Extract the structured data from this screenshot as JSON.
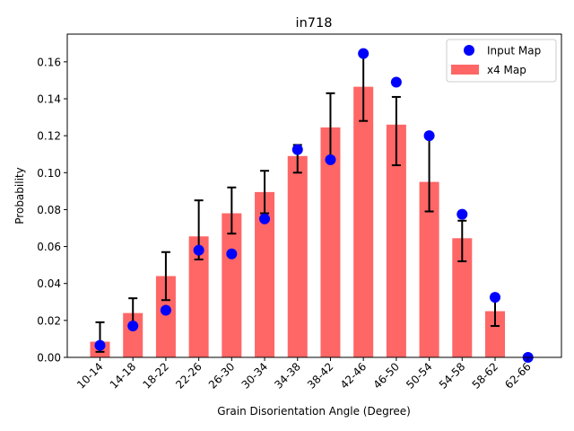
{
  "chart_data": {
    "type": "bar",
    "title": "in718",
    "xlabel": "Grain Disorientation Angle (Degree)",
    "ylabel": "Probability",
    "ylim": [
      0,
      0.175
    ],
    "yticks": [
      0.0,
      0.02,
      0.04,
      0.06,
      0.08,
      0.1,
      0.12,
      0.14,
      0.16
    ],
    "ytick_labels": [
      "0.00",
      "0.02",
      "0.04",
      "0.06",
      "0.08",
      "0.10",
      "0.12",
      "0.14",
      "0.16"
    ],
    "categories": [
      "10-14",
      "14-18",
      "18-22",
      "22-26",
      "26-30",
      "30-34",
      "34-38",
      "38-42",
      "42-46",
      "46-50",
      "50-54",
      "54-58",
      "58-62",
      "62-66"
    ],
    "series": [
      {
        "name": "x4 Map",
        "kind": "bar",
        "color": "#ff6666",
        "values": [
          0.0085,
          0.024,
          0.044,
          0.0655,
          0.078,
          0.0895,
          0.109,
          0.1245,
          0.1465,
          0.126,
          0.095,
          0.0645,
          0.025,
          0.0
        ],
        "error_low": [
          0.003,
          0.017,
          0.031,
          0.053,
          0.067,
          0.078,
          0.1,
          0.107,
          0.128,
          0.104,
          0.079,
          0.052,
          0.017,
          0.0
        ],
        "error_high": [
          0.019,
          0.032,
          0.057,
          0.085,
          0.092,
          0.101,
          0.115,
          0.143,
          0.165,
          0.141,
          0.12,
          0.074,
          0.033,
          0.0
        ]
      },
      {
        "name": "Input Map",
        "kind": "scatter",
        "color": "#0000ff",
        "values": [
          0.0065,
          0.017,
          0.0255,
          0.058,
          0.056,
          0.075,
          0.1125,
          0.107,
          0.1645,
          0.149,
          0.12,
          0.0775,
          0.0325,
          0.0
        ]
      }
    ],
    "legend": {
      "position": "top-right",
      "entries": [
        "Input Map",
        "x4 Map"
      ]
    },
    "grid": false
  }
}
